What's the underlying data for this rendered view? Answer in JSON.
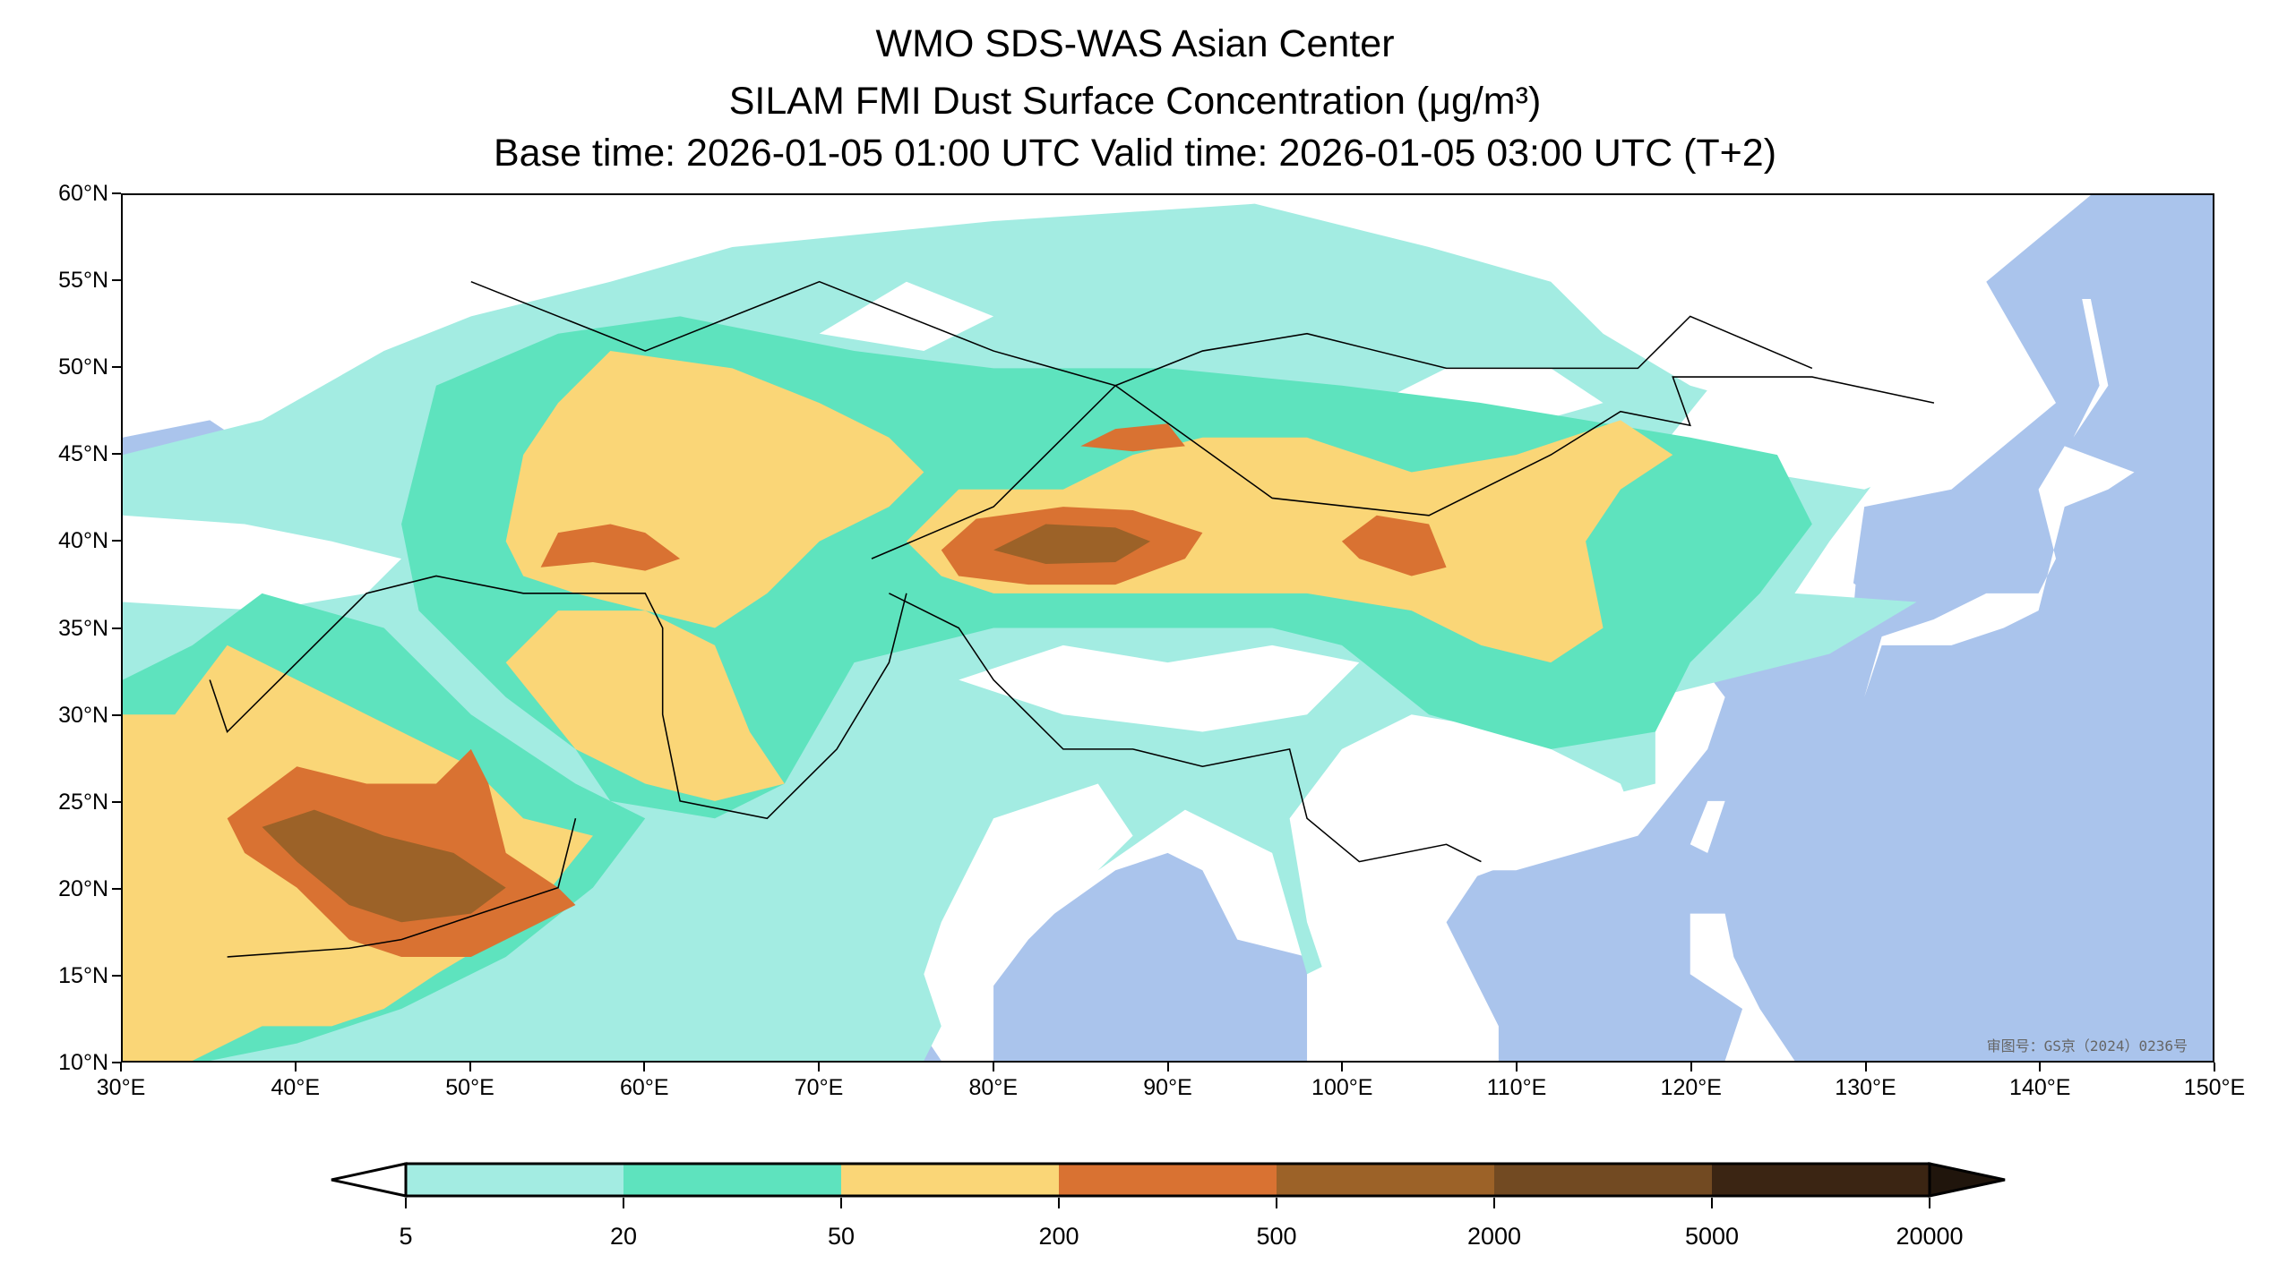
{
  "title": {
    "line1": "WMO SDS-WAS Asian Center",
    "line2": "SILAM FMI Dust Surface Concentration (μg/m³)",
    "line3": "Base time: 2026-01-05 01:00 UTC Valid time: 2026-01-05 03:00 UTC (T+2)"
  },
  "map": {
    "lon_range": [
      30,
      150
    ],
    "lat_range": [
      10,
      60
    ],
    "lon_ticks": [
      "30°E",
      "40°E",
      "50°E",
      "60°E",
      "70°E",
      "80°E",
      "90°E",
      "100°E",
      "110°E",
      "120°E",
      "130°E",
      "140°E",
      "150°E"
    ],
    "lat_ticks": [
      "10°N",
      "15°N",
      "20°N",
      "25°N",
      "30°N",
      "35°N",
      "40°N",
      "45°N",
      "50°N",
      "55°N",
      "60°N"
    ],
    "watermark": "审图号：GS京（2024）0236号",
    "colors": {
      "ocean": "#aac4ec",
      "land": "#ffffff"
    }
  },
  "colorbar": {
    "levels": [
      "5",
      "20",
      "50",
      "200",
      "500",
      "2000",
      "5000",
      "20000"
    ],
    "colors": [
      "#a3ece2",
      "#5ee3be",
      "#fad677",
      "#d97232",
      "#9c6228",
      "#724a22",
      "#3b2513"
    ],
    "under_color": "#ffffff",
    "over_color": "#20150c"
  }
}
